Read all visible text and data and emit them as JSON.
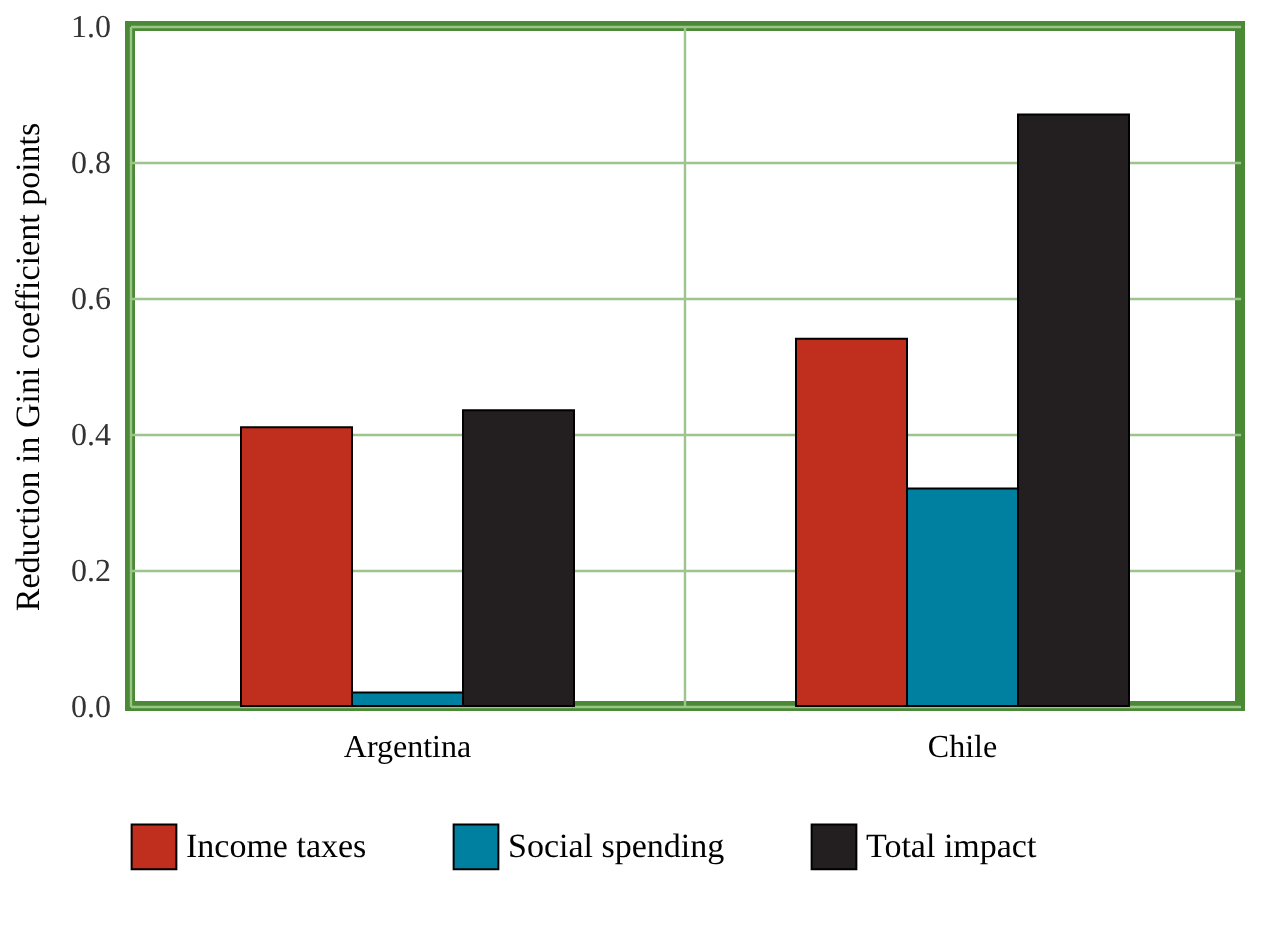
{
  "chart_data": {
    "type": "bar",
    "ylabel": "Reduction in Gini coefficient points",
    "categories": [
      "Argentina",
      "Chile"
    ],
    "series": [
      {
        "name": "Income taxes",
        "color": "#c02e1d",
        "values": [
          0.41,
          0.54
        ]
      },
      {
        "name": "Social spending",
        "color": "#0080a0",
        "values": [
          0.02,
          0.32
        ]
      },
      {
        "name": "Total impact",
        "color": "#231f20",
        "values": [
          0.435,
          0.87
        ]
      }
    ],
    "ylim": [
      0,
      1.0
    ],
    "yticks": [
      {
        "value": 0,
        "label": "0.0"
      },
      {
        "value": 0.2,
        "label": "0.2"
      },
      {
        "value": 0.4,
        "label": "0.4"
      },
      {
        "value": 0.6,
        "label": "0.6"
      },
      {
        "value": 0.8,
        "label": "0.8"
      },
      {
        "value": 1.0,
        "label": "1.0"
      }
    ],
    "grid": true,
    "legend": "bottom"
  }
}
